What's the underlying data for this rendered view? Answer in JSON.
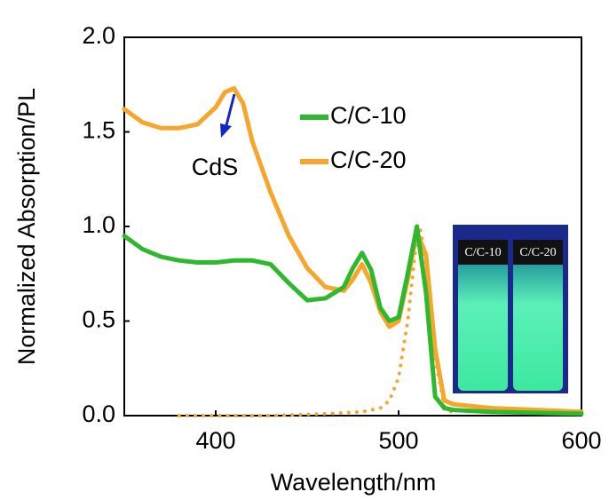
{
  "chart_data": {
    "type": "line",
    "xlabel": "Wavelength/nm",
    "ylabel": "Normalized  Absorption/PL",
    "xlim": [
      350,
      600
    ],
    "xticks": [
      400,
      500,
      600
    ],
    "ylim": [
      0,
      2
    ],
    "yticks": [
      {
        "value": 0,
        "label": "0.0"
      },
      0.5,
      {
        "value": 1,
        "label": "1.0"
      },
      1.5,
      {
        "value": 2,
        "label": "2.0"
      }
    ],
    "annotation": "CdS",
    "inset_labels": [
      "C/C-10",
      "C/C-20"
    ],
    "series": [
      {
        "name": "C/C-10",
        "color": "#2db82d",
        "style": "solid",
        "x": [
          350,
          360,
          370,
          380,
          390,
          400,
          410,
          420,
          430,
          440,
          450,
          460,
          470,
          475,
          480,
          485,
          490,
          495,
          500,
          505,
          510,
          515,
          520,
          525,
          530,
          550,
          600
        ],
        "values": [
          0.95,
          0.88,
          0.84,
          0.82,
          0.81,
          0.81,
          0.82,
          0.82,
          0.8,
          0.7,
          0.61,
          0.62,
          0.68,
          0.78,
          0.86,
          0.77,
          0.57,
          0.5,
          0.52,
          0.75,
          1.0,
          0.65,
          0.1,
          0.04,
          0.03,
          0.02,
          0.01
        ]
      },
      {
        "name": "C/C-20",
        "color": "#f7a52b",
        "style": "solid",
        "x": [
          350,
          360,
          370,
          380,
          390,
          400,
          405,
          410,
          415,
          420,
          430,
          440,
          450,
          460,
          470,
          475,
          480,
          485,
          490,
          495,
          500,
          505,
          510,
          515,
          520,
          525,
          530,
          550,
          600
        ],
        "values": [
          1.62,
          1.55,
          1.52,
          1.52,
          1.54,
          1.63,
          1.71,
          1.73,
          1.65,
          1.45,
          1.18,
          0.95,
          0.78,
          0.68,
          0.66,
          0.72,
          0.8,
          0.7,
          0.55,
          0.47,
          0.5,
          0.72,
          0.97,
          0.85,
          0.35,
          0.08,
          0.06,
          0.04,
          0.02
        ]
      },
      {
        "color": "#f7a52b",
        "style": "dotted",
        "x": [
          380,
          400,
          430,
          460,
          480,
          490,
          495,
          500,
          505,
          510,
          512,
          515,
          520,
          525,
          530
        ],
        "values": [
          0,
          0,
          0,
          0.01,
          0.02,
          0.04,
          0.08,
          0.2,
          0.5,
          0.95,
          0.98,
          0.8,
          0.3,
          0.05,
          0.01
        ]
      }
    ]
  }
}
